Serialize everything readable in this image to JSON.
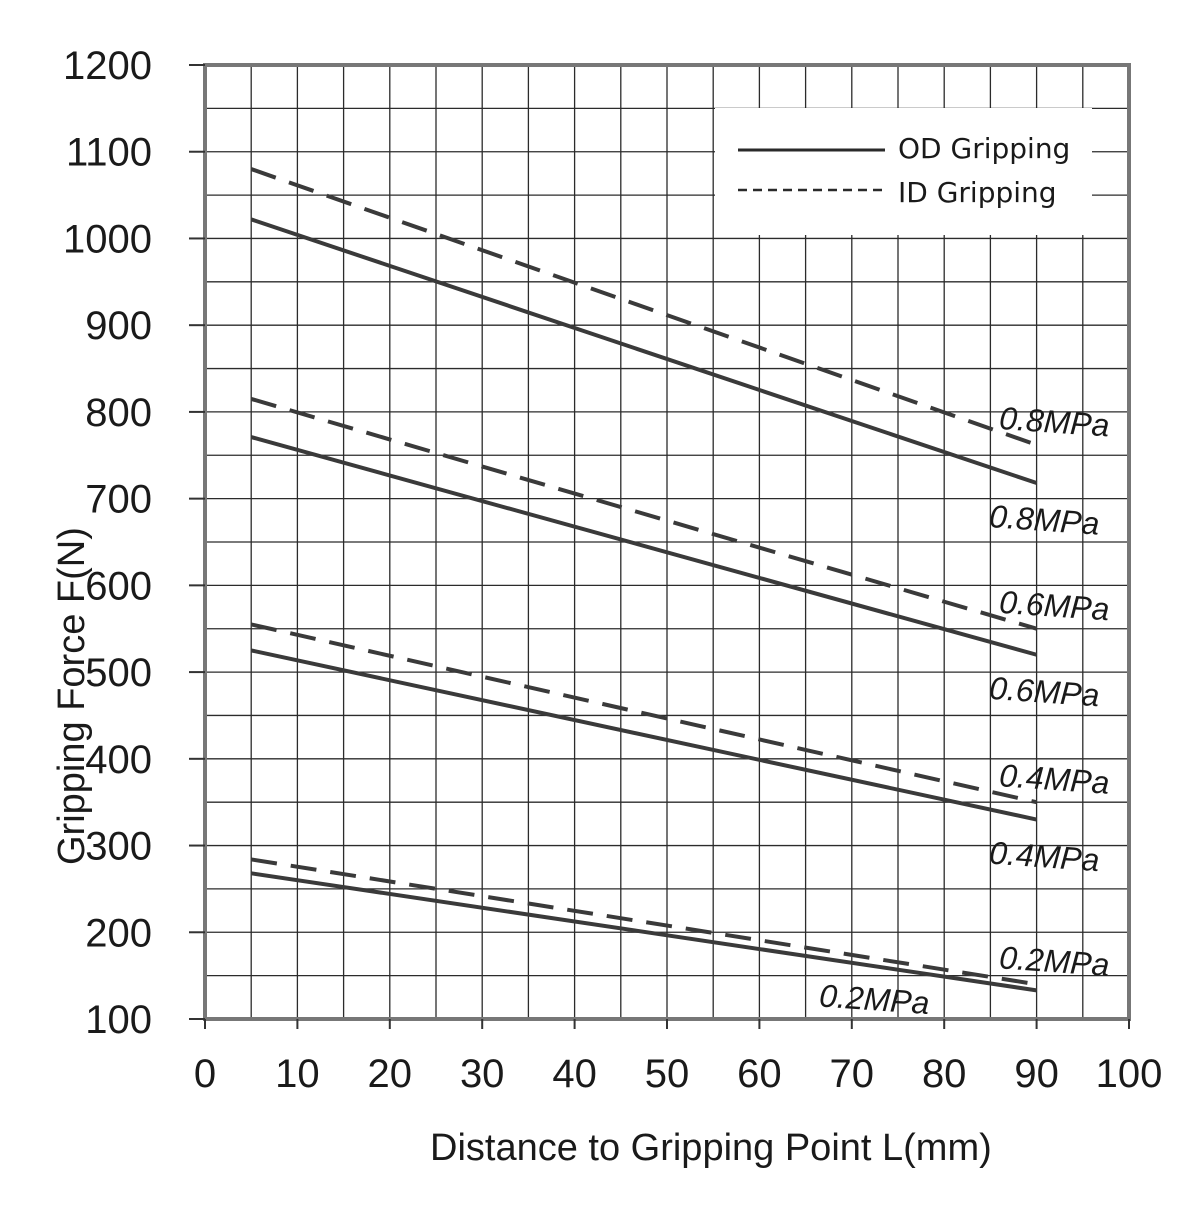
{
  "chart_data": {
    "type": "line",
    "xlabel": "Distance to Gripping Point   L(mm)",
    "ylabel": "Gripping Force   F(N)",
    "xlim": [
      0,
      100
    ],
    "ylim": [
      100,
      1200
    ],
    "xticks": [
      0,
      10,
      20,
      30,
      40,
      50,
      60,
      70,
      80,
      90,
      100
    ],
    "yticks": [
      100,
      200,
      300,
      400,
      500,
      600,
      700,
      800,
      900,
      1000,
      1100,
      1200
    ],
    "grid": true,
    "legend": {
      "placement": "top-right",
      "entries": [
        {
          "label": "OD Gripping",
          "style": "solid"
        },
        {
          "label": "ID Gripping",
          "style": "dashed"
        }
      ]
    },
    "series": [
      {
        "group": "OD Gripping",
        "label": "0.8MPa",
        "style": "solid",
        "x": [
          5,
          90
        ],
        "y": [
          1022,
          718
        ]
      },
      {
        "group": "ID Gripping",
        "label": "0.8MPa",
        "style": "dashed",
        "x": [
          5,
          90
        ],
        "y": [
          1080,
          762
        ]
      },
      {
        "group": "OD Gripping",
        "label": "0.6MPa",
        "style": "solid",
        "x": [
          5,
          90
        ],
        "y": [
          771,
          520
        ]
      },
      {
        "group": "ID Gripping",
        "label": "0.6MPa",
        "style": "dashed",
        "x": [
          5,
          90
        ],
        "y": [
          815,
          550
        ]
      },
      {
        "group": "OD Gripping",
        "label": "0.4MPa",
        "style": "solid",
        "x": [
          5,
          90
        ],
        "y": [
          525,
          330
        ]
      },
      {
        "group": "ID Gripping",
        "label": "0.4MPa",
        "style": "dashed",
        "x": [
          5,
          90
        ],
        "y": [
          555,
          350
        ]
      },
      {
        "group": "OD Gripping",
        "label": "0.2MPa",
        "style": "solid",
        "x": [
          5,
          90
        ],
        "y": [
          268,
          133
        ]
      },
      {
        "group": "ID Gripping",
        "label": "0.2MPa",
        "style": "dashed",
        "x": [
          5,
          90
        ],
        "y": [
          284,
          140
        ]
      }
    ]
  }
}
